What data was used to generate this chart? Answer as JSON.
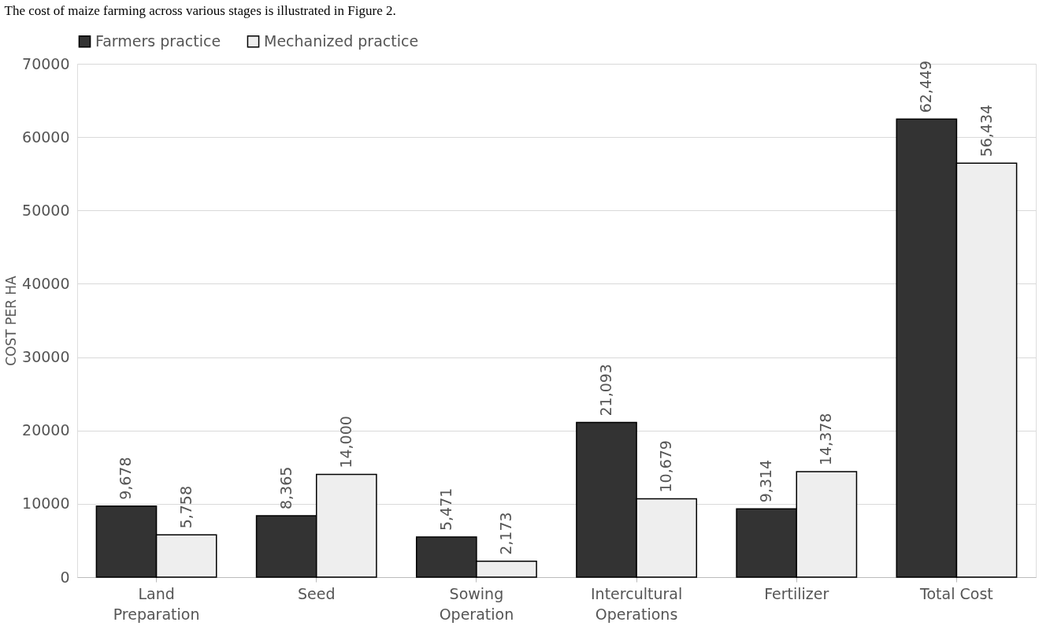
{
  "chart_data": {
    "type": "bar",
    "ylabel": "COST PER HA",
    "annotations": [
      "The cost of maize farming across various stages is illustrated in Figure 2."
    ],
    "categories": [
      "Land Preparation",
      "Seed",
      "Sowing Operation",
      "Intercultural Operations",
      "Fertilizer",
      "Total  Cost"
    ],
    "series": [
      {
        "name": "Farmers practice",
        "color": "#333333",
        "values": [
          9678,
          8365,
          5471,
          21093,
          9314,
          62449
        ],
        "value_labels": [
          "9,678",
          "8,365",
          "5,471",
          "21,093",
          "9,314",
          "62,449"
        ]
      },
      {
        "name": "Mechanized practice",
        "color": "#eeeeee",
        "values": [
          5758,
          14000,
          2173,
          10679,
          14378,
          56434
        ],
        "value_labels": [
          "5,758",
          "14,000",
          "2,173",
          "10,679",
          "14,378",
          "56,434"
        ]
      }
    ],
    "ylim": [
      0,
      70000
    ],
    "yticks": [
      0,
      10000,
      20000,
      30000,
      40000,
      50000,
      60000,
      70000
    ],
    "grid": "y",
    "legend": "top"
  }
}
